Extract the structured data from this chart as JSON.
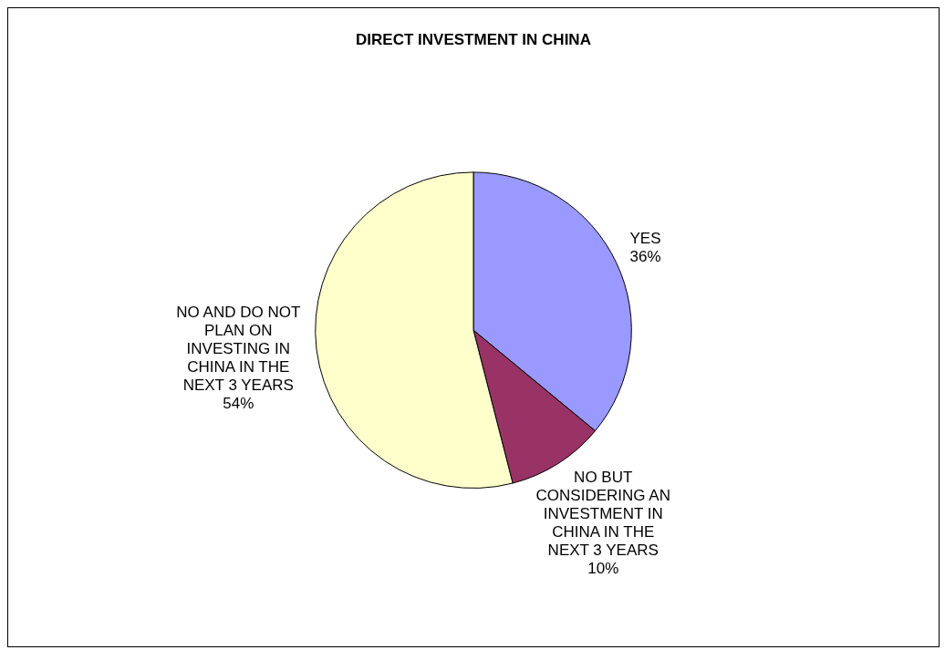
{
  "chart_data": {
    "type": "pie",
    "title": "DIRECT INVESTMENT IN CHINA",
    "categories": [
      "YES",
      "NO BUT CONSIDERING AN INVESTMENT IN CHINA IN THE NEXT 3 YEARS",
      "NO AND DO NOT PLAN ON INVESTING IN CHINA IN THE NEXT 3 YEARS"
    ],
    "values": [
      36,
      10,
      54
    ],
    "colors": [
      "#9999ff",
      "#993366",
      "#ffffcc"
    ],
    "value_labels": [
      "36%",
      "10%",
      "54%"
    ],
    "legend": false
  }
}
